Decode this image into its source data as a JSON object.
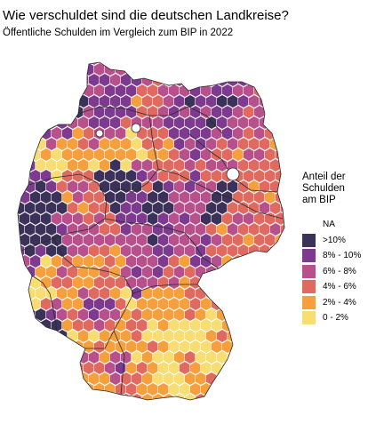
{
  "title": "Wie verschuldet sind die deutschen Landkreise?",
  "subtitle": "Öffentliche Schulden im Vergleich zum BIP in 2022",
  "legend": {
    "title_line1": "Anteil der Schulden",
    "title_line2": "am BIP",
    "items": [
      {
        "label": "NA",
        "color": "#ffffff"
      },
      {
        "label": ">10%",
        "color": "#3b3159"
      },
      {
        "label": "8% - 10%",
        "color": "#7e3a8e"
      },
      {
        "label": "6% - 8%",
        "color": "#b8508b"
      },
      {
        "label": "4% - 6%",
        "color": "#e06a60"
      },
      {
        "label": "2% - 4%",
        "color": "#f5a03c"
      },
      {
        "label": "0 - 2%",
        "color": "#f8de72"
      }
    ]
  },
  "map_colors": {
    "border": "#ffffff",
    "state_border": "#2a2a2a"
  }
}
